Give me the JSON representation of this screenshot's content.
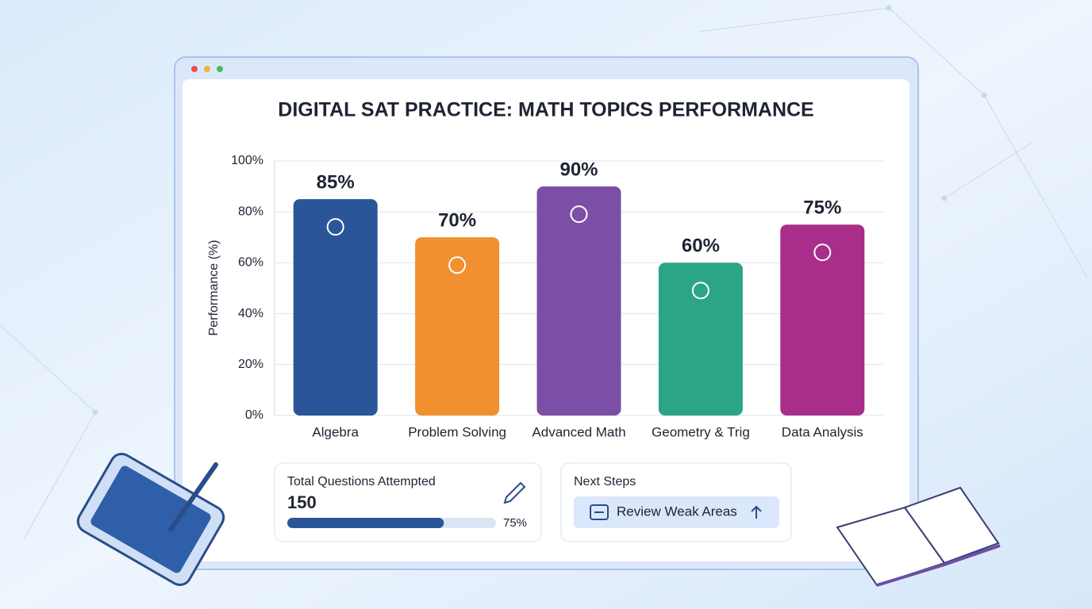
{
  "chart_data": {
    "type": "bar",
    "title": "DIGITAL SAT PRACTICE: MATH TOPICS PERFORMANCE",
    "y_label": "Performance (%)",
    "categories": [
      "Algebra",
      "Problem Solving",
      "Advanced Math",
      "Geometry & Trig",
      "Data Analysis"
    ],
    "values": [
      85,
      70,
      90,
      60,
      75
    ],
    "value_labels": [
      "85%",
      "70%",
      "90%",
      "60%",
      "75%"
    ],
    "colors": [
      "#2a5699",
      "#f0902f",
      "#7b4fa6",
      "#2ba585",
      "#a82e8a"
    ],
    "ylim": [
      0,
      100
    ],
    "yticks": [
      {
        "value": 0,
        "label": "0%"
      },
      {
        "value": 20,
        "label": "20%"
      },
      {
        "value": 40,
        "label": "40%"
      },
      {
        "value": 60,
        "label": "60%"
      },
      {
        "value": 80,
        "label": "80%"
      },
      {
        "value": 100,
        "label": "100%"
      }
    ],
    "grid": true
  },
  "summary": {
    "label": "Total Questions Attempted",
    "count": 150,
    "progress": 75,
    "progress_label": "75%"
  },
  "next_steps": {
    "title": "Next Steps",
    "button": "Review Weak Areas"
  }
}
